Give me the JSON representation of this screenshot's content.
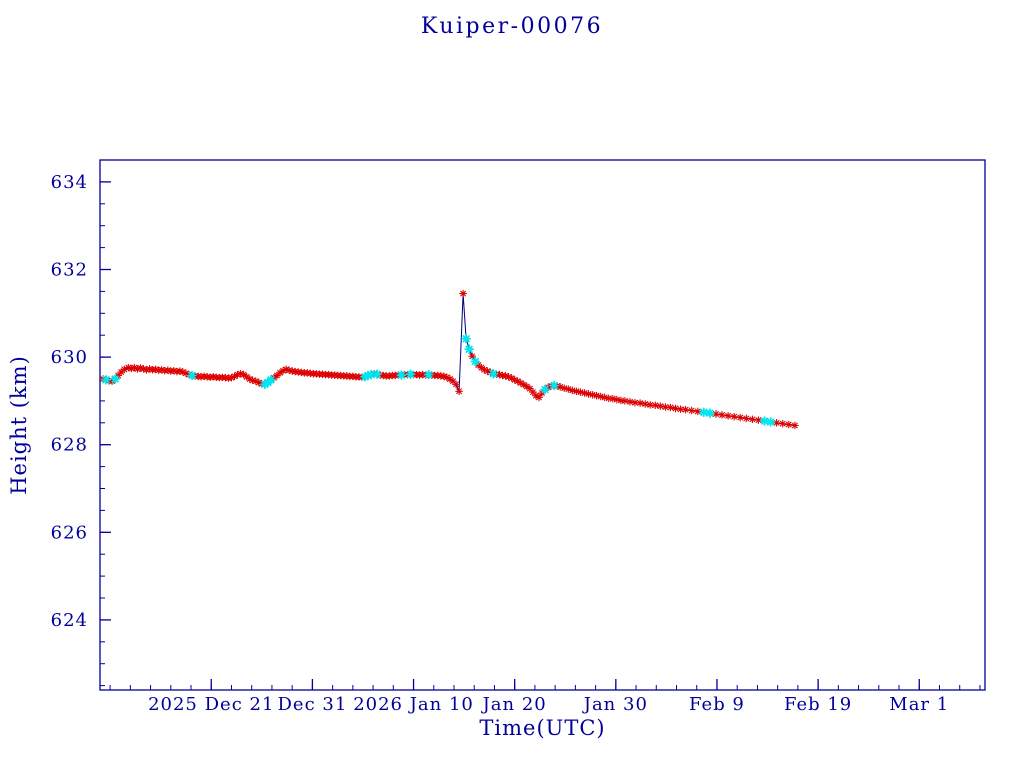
{
  "title": "Kuiper-00076",
  "chart_data": {
    "type": "line",
    "title": "Kuiper-00076",
    "xlabel": "Time(UTC)",
    "ylabel": "Height (km)",
    "x_encoding": "days, day 0 = first axis date region (2025 Dec 10)",
    "xlim": [
      0,
      87.5
    ],
    "ylim": [
      622.4,
      634.5
    ],
    "x_major_ticks": [
      {
        "day": 11,
        "label": "2025 Dec 21"
      },
      {
        "day": 21,
        "label": "Dec 31"
      },
      {
        "day": 31,
        "label": "2026 Jan 10"
      },
      {
        "day": 41,
        "label": "Jan 20"
      },
      {
        "day": 51,
        "label": "Jan 30"
      },
      {
        "day": 61,
        "label": "Feb 9"
      },
      {
        "day": 71,
        "label": "Feb 19"
      },
      {
        "day": 81,
        "label": "Mar 1"
      }
    ],
    "x_minor_step": 2,
    "y_major_ticks": [
      624,
      626,
      628,
      630,
      632,
      634
    ],
    "y_minor_step": 0.5,
    "grid": false,
    "legend": "none",
    "colors": {
      "axis": "#000099",
      "text": "#000099",
      "line": "#000080",
      "marker_primary": "#dd0000",
      "marker_secondary": "#00e5ee",
      "background": "#ffffff"
    },
    "marker_flag_meaning": {
      "0": "red asterisk point",
      "1": "cyan point"
    },
    "series": [
      {
        "name": "height_km",
        "points": [
          [
            0.3,
            629.5,
            0
          ],
          [
            0.6,
            629.48,
            1
          ],
          [
            0.9,
            629.46,
            0
          ],
          [
            1.2,
            629.45,
            0
          ],
          [
            1.5,
            629.5,
            1
          ],
          [
            1.8,
            629.58,
            0
          ],
          [
            2.1,
            629.66,
            0
          ],
          [
            2.4,
            629.72,
            0
          ],
          [
            2.8,
            629.76,
            0
          ],
          [
            3.1,
            629.74,
            0
          ],
          [
            3.4,
            629.76,
            0
          ],
          [
            3.7,
            629.73,
            0
          ],
          [
            4.0,
            629.75,
            0
          ],
          [
            4.3,
            629.73,
            0
          ],
          [
            4.6,
            629.71,
            0
          ],
          [
            4.9,
            629.73,
            0
          ],
          [
            5.2,
            629.71,
            0
          ],
          [
            5.5,
            629.72,
            0
          ],
          [
            5.8,
            629.7,
            0
          ],
          [
            6.1,
            629.71,
            0
          ],
          [
            6.4,
            629.69,
            0
          ],
          [
            6.7,
            629.7,
            0
          ],
          [
            7.0,
            629.68,
            0
          ],
          [
            7.3,
            629.69,
            0
          ],
          [
            7.6,
            629.67,
            0
          ],
          [
            7.9,
            629.68,
            0
          ],
          [
            8.2,
            629.66,
            0
          ],
          [
            8.5,
            629.63,
            0
          ],
          [
            8.8,
            629.6,
            0
          ],
          [
            9.1,
            629.58,
            1
          ],
          [
            9.4,
            629.57,
            0
          ],
          [
            9.7,
            629.56,
            0
          ],
          [
            10.0,
            629.55,
            0
          ],
          [
            10.3,
            629.56,
            0
          ],
          [
            10.6,
            629.55,
            0
          ],
          [
            10.9,
            629.54,
            0
          ],
          [
            11.2,
            629.55,
            0
          ],
          [
            11.5,
            629.54,
            0
          ],
          [
            11.8,
            629.53,
            0
          ],
          [
            12.1,
            629.54,
            0
          ],
          [
            12.4,
            629.53,
            0
          ],
          [
            12.7,
            629.52,
            0
          ],
          [
            13.0,
            629.53,
            0
          ],
          [
            13.3,
            629.56,
            0
          ],
          [
            13.6,
            629.6,
            0
          ],
          [
            13.9,
            629.62,
            0
          ],
          [
            14.2,
            629.6,
            0
          ],
          [
            14.5,
            629.55,
            0
          ],
          [
            14.8,
            629.5,
            0
          ],
          [
            15.1,
            629.47,
            0
          ],
          [
            15.4,
            629.45,
            0
          ],
          [
            15.7,
            629.42,
            0
          ],
          [
            16.0,
            629.39,
            0
          ],
          [
            16.3,
            629.38,
            1
          ],
          [
            16.6,
            629.42,
            1
          ],
          [
            16.9,
            629.48,
            1
          ],
          [
            17.2,
            629.53,
            0
          ],
          [
            17.5,
            629.58,
            0
          ],
          [
            17.8,
            629.64,
            0
          ],
          [
            18.1,
            629.69,
            0
          ],
          [
            18.4,
            629.72,
            0
          ],
          [
            18.7,
            629.7,
            0
          ],
          [
            19.0,
            629.68,
            0
          ],
          [
            19.3,
            629.67,
            0
          ],
          [
            19.6,
            629.66,
            0
          ],
          [
            19.9,
            629.65,
            0
          ],
          [
            20.2,
            629.64,
            0
          ],
          [
            20.5,
            629.64,
            0
          ],
          [
            20.8,
            629.63,
            0
          ],
          [
            21.1,
            629.62,
            0
          ],
          [
            21.4,
            629.62,
            0
          ],
          [
            21.7,
            629.61,
            0
          ],
          [
            22.0,
            629.61,
            0
          ],
          [
            22.3,
            629.6,
            0
          ],
          [
            22.6,
            629.6,
            0
          ],
          [
            22.9,
            629.59,
            0
          ],
          [
            23.2,
            629.59,
            0
          ],
          [
            23.5,
            629.58,
            0
          ],
          [
            23.8,
            629.58,
            0
          ],
          [
            24.1,
            629.57,
            0
          ],
          [
            24.4,
            629.57,
            0
          ],
          [
            24.7,
            629.56,
            0
          ],
          [
            25.0,
            629.56,
            0
          ],
          [
            25.3,
            629.55,
            0
          ],
          [
            25.6,
            629.55,
            0
          ],
          [
            25.9,
            629.54,
            0
          ],
          [
            26.2,
            629.55,
            1
          ],
          [
            26.5,
            629.58,
            1
          ],
          [
            26.8,
            629.6,
            1
          ],
          [
            27.1,
            629.62,
            0
          ],
          [
            27.4,
            629.61,
            1
          ],
          [
            27.7,
            629.59,
            0
          ],
          [
            28.0,
            629.58,
            0
          ],
          [
            28.3,
            629.57,
            0
          ],
          [
            28.6,
            629.57,
            0
          ],
          [
            28.9,
            629.58,
            0
          ],
          [
            29.2,
            629.58,
            0
          ],
          [
            29.5,
            629.59,
            0
          ],
          [
            29.8,
            629.59,
            1
          ],
          [
            30.1,
            629.6,
            0
          ],
          [
            30.4,
            629.6,
            0
          ],
          [
            30.7,
            629.61,
            1
          ],
          [
            31.0,
            629.6,
            0
          ],
          [
            31.3,
            629.6,
            0
          ],
          [
            31.6,
            629.59,
            0
          ],
          [
            31.9,
            629.6,
            0
          ],
          [
            32.2,
            629.59,
            0
          ],
          [
            32.5,
            629.6,
            1
          ],
          [
            32.8,
            629.59,
            0
          ],
          [
            33.1,
            629.58,
            0
          ],
          [
            33.4,
            629.58,
            0
          ],
          [
            33.7,
            629.57,
            0
          ],
          [
            34.0,
            629.56,
            0
          ],
          [
            34.3,
            629.54,
            0
          ],
          [
            34.6,
            629.5,
            0
          ],
          [
            34.9,
            629.45,
            0
          ],
          [
            35.2,
            629.38,
            0
          ],
          [
            35.5,
            629.22,
            0
          ],
          [
            35.9,
            631.45,
            0
          ],
          [
            36.2,
            630.42,
            1
          ],
          [
            36.5,
            630.18,
            1
          ],
          [
            36.8,
            630.02,
            0
          ],
          [
            37.1,
            629.9,
            1
          ],
          [
            37.4,
            629.82,
            0
          ],
          [
            37.7,
            629.76,
            0
          ],
          [
            38.0,
            629.71,
            0
          ],
          [
            38.3,
            629.68,
            0
          ],
          [
            38.6,
            629.65,
            0
          ],
          [
            38.9,
            629.62,
            1
          ],
          [
            39.2,
            629.61,
            0
          ],
          [
            39.5,
            629.6,
            0
          ],
          [
            39.8,
            629.58,
            0
          ],
          [
            40.1,
            629.57,
            0
          ],
          [
            40.4,
            629.55,
            0
          ],
          [
            40.7,
            629.52,
            0
          ],
          [
            41.0,
            629.48,
            0
          ],
          [
            41.3,
            629.45,
            0
          ],
          [
            41.6,
            629.41,
            0
          ],
          [
            41.9,
            629.37,
            0
          ],
          [
            42.2,
            629.33,
            0
          ],
          [
            42.5,
            629.28,
            0
          ],
          [
            42.8,
            629.2,
            0
          ],
          [
            43.1,
            629.12,
            0
          ],
          [
            43.4,
            629.08,
            0
          ],
          [
            43.7,
            629.18,
            0
          ],
          [
            44.0,
            629.26,
            1
          ],
          [
            44.3,
            629.31,
            0
          ],
          [
            44.6,
            629.34,
            0
          ],
          [
            44.9,
            629.35,
            1
          ],
          [
            45.2,
            629.34,
            0
          ],
          [
            45.5,
            629.32,
            0
          ],
          [
            45.9,
            629.29,
            0
          ],
          [
            46.3,
            629.27,
            0
          ],
          [
            46.7,
            629.24,
            0
          ],
          [
            47.1,
            629.22,
            0
          ],
          [
            47.5,
            629.2,
            0
          ],
          [
            47.9,
            629.18,
            0
          ],
          [
            48.3,
            629.16,
            0
          ],
          [
            48.7,
            629.14,
            0
          ],
          [
            49.1,
            629.12,
            0
          ],
          [
            49.5,
            629.1,
            0
          ],
          [
            49.9,
            629.08,
            0
          ],
          [
            50.3,
            629.06,
            0
          ],
          [
            50.7,
            629.05,
            0
          ],
          [
            51.1,
            629.03,
            0
          ],
          [
            51.5,
            629.01,
            0
          ],
          [
            51.9,
            629.0,
            0
          ],
          [
            52.4,
            628.98,
            0
          ],
          [
            52.9,
            628.96,
            0
          ],
          [
            53.4,
            628.95,
            0
          ],
          [
            53.9,
            628.93,
            0
          ],
          [
            54.4,
            628.91,
            0
          ],
          [
            54.9,
            628.9,
            0
          ],
          [
            55.4,
            628.88,
            0
          ],
          [
            55.9,
            628.86,
            0
          ],
          [
            56.4,
            628.85,
            0
          ],
          [
            56.9,
            628.83,
            0
          ],
          [
            57.4,
            628.81,
            0
          ],
          [
            57.9,
            628.8,
            0
          ],
          [
            58.5,
            628.78,
            0
          ],
          [
            59.1,
            628.76,
            0
          ],
          [
            59.7,
            628.74,
            1
          ],
          [
            60.3,
            628.72,
            1
          ],
          [
            60.9,
            628.7,
            0
          ],
          [
            61.5,
            628.68,
            0
          ],
          [
            62.1,
            628.66,
            0
          ],
          [
            62.7,
            628.64,
            0
          ],
          [
            63.3,
            628.62,
            0
          ],
          [
            63.9,
            628.6,
            0
          ],
          [
            64.5,
            628.58,
            0
          ],
          [
            65.1,
            628.56,
            0
          ],
          [
            65.7,
            628.54,
            1
          ],
          [
            66.3,
            628.52,
            1
          ],
          [
            66.9,
            628.5,
            0
          ],
          [
            67.5,
            628.48,
            0
          ],
          [
            68.1,
            628.46,
            0
          ],
          [
            68.7,
            628.44,
            0
          ]
        ]
      }
    ]
  }
}
